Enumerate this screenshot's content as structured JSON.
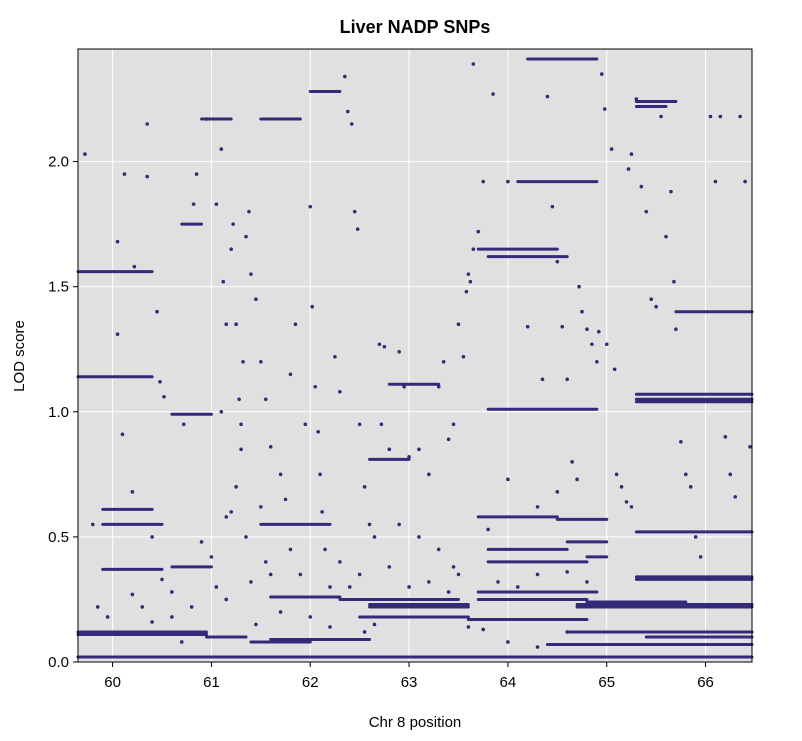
{
  "chart_data": {
    "type": "scatter",
    "title": "Liver NADP SNPs",
    "xlabel": "Chr 8 position",
    "ylabel": "LOD score",
    "xlim": [
      59.65,
      66.47
    ],
    "ylim": [
      0.0,
      2.45
    ],
    "x_ticks": [
      60,
      61,
      62,
      63,
      64,
      65,
      66
    ],
    "x_tick_labels": [
      "60",
      "61",
      "62",
      "63",
      "64",
      "65",
      "66"
    ],
    "y_ticks": [
      0.0,
      0.5,
      1.0,
      1.5,
      2.0
    ],
    "y_tick_labels": [
      "0.0",
      "0.5",
      "1.0",
      "1.5",
      "2.0"
    ],
    "grid": true,
    "background_color": "#e0e0e0",
    "grid_color": "#ffffff",
    "point_color": "#332a7a",
    "segments": [
      {
        "x0": 59.65,
        "x1": 60.95,
        "y": 0.12
      },
      {
        "x0": 59.65,
        "x1": 60.95,
        "y": 0.11
      },
      {
        "x0": 60.95,
        "x1": 61.35,
        "y": 0.1
      },
      {
        "x0": 61.4,
        "x1": 62.0,
        "y": 0.08
      },
      {
        "x0": 61.6,
        "x1": 62.6,
        "y": 0.09
      },
      {
        "x0": 61.6,
        "x1": 62.3,
        "y": 0.26
      },
      {
        "x0": 62.3,
        "x1": 63.5,
        "y": 0.25
      },
      {
        "x0": 62.6,
        "x1": 63.6,
        "y": 0.23
      },
      {
        "x0": 62.6,
        "x1": 63.6,
        "y": 0.22
      },
      {
        "x0": 62.5,
        "x1": 63.6,
        "y": 0.18
      },
      {
        "x0": 63.6,
        "x1": 64.8,
        "y": 0.17
      },
      {
        "x0": 64.7,
        "x1": 66.47,
        "y": 0.22
      },
      {
        "x0": 64.7,
        "x1": 66.47,
        "y": 0.23
      },
      {
        "x0": 64.4,
        "x1": 66.47,
        "y": 0.07
      },
      {
        "x0": 62.0,
        "x1": 66.47,
        "y": 0.02
      },
      {
        "x0": 59.65,
        "x1": 62.5,
        "y": 0.02
      },
      {
        "x0": 63.8,
        "x1": 64.6,
        "y": 0.45
      },
      {
        "x0": 64.6,
        "x1": 65.0,
        "y": 0.48
      },
      {
        "x0": 63.8,
        "x1": 64.8,
        "y": 0.4
      },
      {
        "x0": 64.8,
        "x1": 65.0,
        "y": 0.42
      },
      {
        "x0": 63.7,
        "x1": 64.5,
        "y": 0.58
      },
      {
        "x0": 64.5,
        "x1": 65.0,
        "y": 0.57
      },
      {
        "x0": 63.7,
        "x1": 64.8,
        "y": 0.25
      },
      {
        "x0": 64.8,
        "x1": 65.8,
        "y": 0.24
      },
      {
        "x0": 65.3,
        "x1": 66.47,
        "y": 0.34
      },
      {
        "x0": 65.3,
        "x1": 66.47,
        "y": 0.33
      },
      {
        "x0": 64.6,
        "x1": 66.47,
        "y": 0.12
      },
      {
        "x0": 65.4,
        "x1": 66.47,
        "y": 0.1
      },
      {
        "x0": 59.65,
        "x1": 60.4,
        "y": 1.56
      },
      {
        "x0": 59.65,
        "x1": 60.4,
        "y": 1.14
      },
      {
        "x0": 59.9,
        "x1": 60.4,
        "y": 0.61
      },
      {
        "x0": 59.9,
        "x1": 60.5,
        "y": 0.37
      },
      {
        "x0": 59.9,
        "x1": 60.5,
        "y": 0.55
      },
      {
        "x0": 60.6,
        "x1": 61.0,
        "y": 0.99
      },
      {
        "x0": 60.6,
        "x1": 61.0,
        "y": 0.38
      },
      {
        "x0": 60.7,
        "x1": 60.9,
        "y": 1.75
      },
      {
        "x0": 60.9,
        "x1": 61.2,
        "y": 2.17
      },
      {
        "x0": 61.5,
        "x1": 61.9,
        "y": 2.17
      },
      {
        "x0": 62.0,
        "x1": 62.3,
        "y": 2.28
      },
      {
        "x0": 63.8,
        "x1": 64.6,
        "y": 1.62
      },
      {
        "x0": 63.7,
        "x1": 64.5,
        "y": 1.65
      },
      {
        "x0": 64.1,
        "x1": 64.9,
        "y": 1.92
      },
      {
        "x0": 64.2,
        "x1": 64.9,
        "y": 2.41
      },
      {
        "x0": 65.3,
        "x1": 65.7,
        "y": 2.24
      },
      {
        "x0": 65.3,
        "x1": 65.6,
        "y": 2.22
      },
      {
        "x0": 65.3,
        "x1": 66.47,
        "y": 1.07
      },
      {
        "x0": 65.3,
        "x1": 66.47,
        "y": 1.05
      },
      {
        "x0": 65.3,
        "x1": 66.47,
        "y": 1.04
      },
      {
        "x0": 65.7,
        "x1": 66.47,
        "y": 1.4
      },
      {
        "x0": 65.3,
        "x1": 66.47,
        "y": 0.52
      },
      {
        "x0": 63.8,
        "x1": 64.9,
        "y": 1.01
      },
      {
        "x0": 62.6,
        "x1": 63.0,
        "y": 0.81
      },
      {
        "x0": 62.8,
        "x1": 63.3,
        "y": 1.11
      },
      {
        "x0": 63.7,
        "x1": 64.9,
        "y": 0.28
      },
      {
        "x0": 61.5,
        "x1": 62.2,
        "y": 0.55
      }
    ],
    "scatter": [
      [
        59.72,
        2.03
      ],
      [
        60.05,
        1.68
      ],
      [
        60.12,
        1.95
      ],
      [
        60.35,
        2.15
      ],
      [
        60.35,
        1.94
      ],
      [
        60.22,
        1.58
      ],
      [
        60.45,
        1.4
      ],
      [
        60.48,
        1.12
      ],
      [
        60.52,
        1.06
      ],
      [
        60.05,
        1.31
      ],
      [
        60.1,
        0.91
      ],
      [
        60.2,
        0.68
      ],
      [
        60.4,
        0.5
      ],
      [
        60.5,
        0.33
      ],
      [
        60.6,
        0.28
      ],
      [
        60.72,
        0.95
      ],
      [
        60.82,
        1.83
      ],
      [
        60.85,
        1.95
      ],
      [
        60.95,
        2.17
      ],
      [
        61.05,
        1.83
      ],
      [
        61.1,
        2.05
      ],
      [
        61.12,
        1.52
      ],
      [
        61.15,
        1.35
      ],
      [
        61.2,
        1.65
      ],
      [
        61.22,
        1.75
      ],
      [
        61.25,
        1.35
      ],
      [
        61.28,
        1.05
      ],
      [
        61.3,
        0.95
      ],
      [
        61.32,
        1.2
      ],
      [
        61.35,
        1.7
      ],
      [
        61.38,
        1.8
      ],
      [
        61.4,
        1.55
      ],
      [
        61.45,
        1.45
      ],
      [
        61.5,
        1.2
      ],
      [
        61.55,
        1.05
      ],
      [
        61.6,
        0.86
      ],
      [
        61.7,
        0.75
      ],
      [
        61.75,
        0.65
      ],
      [
        61.8,
        1.15
      ],
      [
        61.85,
        1.35
      ],
      [
        61.95,
        0.95
      ],
      [
        62.0,
        1.82
      ],
      [
        62.02,
        1.42
      ],
      [
        62.05,
        1.1
      ],
      [
        62.08,
        0.92
      ],
      [
        62.1,
        0.75
      ],
      [
        62.12,
        0.6
      ],
      [
        62.15,
        0.45
      ],
      [
        62.2,
        0.3
      ],
      [
        62.25,
        1.22
      ],
      [
        62.3,
        1.08
      ],
      [
        62.35,
        2.34
      ],
      [
        62.38,
        2.2
      ],
      [
        62.42,
        2.15
      ],
      [
        62.45,
        1.8
      ],
      [
        62.48,
        1.73
      ],
      [
        62.5,
        0.95
      ],
      [
        62.55,
        0.7
      ],
      [
        62.6,
        0.55
      ],
      [
        62.65,
        0.5
      ],
      [
        62.7,
        1.27
      ],
      [
        62.72,
        0.95
      ],
      [
        62.75,
        1.26
      ],
      [
        62.8,
        0.85
      ],
      [
        62.9,
        1.24
      ],
      [
        62.95,
        1.1
      ],
      [
        63.0,
        0.82
      ],
      [
        63.1,
        0.85
      ],
      [
        63.2,
        0.75
      ],
      [
        63.3,
        1.1
      ],
      [
        63.35,
        1.2
      ],
      [
        63.4,
        0.89
      ],
      [
        63.45,
        0.95
      ],
      [
        63.5,
        1.35
      ],
      [
        63.55,
        1.22
      ],
      [
        63.58,
        1.48
      ],
      [
        63.6,
        1.55
      ],
      [
        63.62,
        1.52
      ],
      [
        63.65,
        1.65
      ],
      [
        63.65,
        2.39
      ],
      [
        63.7,
        1.72
      ],
      [
        63.75,
        1.92
      ],
      [
        63.85,
        2.27
      ],
      [
        64.0,
        1.92
      ],
      [
        64.2,
        1.34
      ],
      [
        64.35,
        1.13
      ],
      [
        64.4,
        2.26
      ],
      [
        64.45,
        1.82
      ],
      [
        64.5,
        1.6
      ],
      [
        64.55,
        1.34
      ],
      [
        64.6,
        1.13
      ],
      [
        64.65,
        0.8
      ],
      [
        64.7,
        0.73
      ],
      [
        64.72,
        1.5
      ],
      [
        64.75,
        1.4
      ],
      [
        64.8,
        1.33
      ],
      [
        64.85,
        1.27
      ],
      [
        64.9,
        1.2
      ],
      [
        64.92,
        1.32
      ],
      [
        64.95,
        2.35
      ],
      [
        64.98,
        2.21
      ],
      [
        65.0,
        1.27
      ],
      [
        65.05,
        2.05
      ],
      [
        65.08,
        1.17
      ],
      [
        65.1,
        0.75
      ],
      [
        65.15,
        0.7
      ],
      [
        65.2,
        0.64
      ],
      [
        65.25,
        0.62
      ],
      [
        65.22,
        1.97
      ],
      [
        65.25,
        2.03
      ],
      [
        65.3,
        2.25
      ],
      [
        65.35,
        1.9
      ],
      [
        65.4,
        1.8
      ],
      [
        65.45,
        1.45
      ],
      [
        65.5,
        1.42
      ],
      [
        65.55,
        2.18
      ],
      [
        65.6,
        1.7
      ],
      [
        65.65,
        1.88
      ],
      [
        65.68,
        1.52
      ],
      [
        65.7,
        1.33
      ],
      [
        65.75,
        0.88
      ],
      [
        65.8,
        0.75
      ],
      [
        65.85,
        0.7
      ],
      [
        65.9,
        0.5
      ],
      [
        65.95,
        0.42
      ],
      [
        66.05,
        2.18
      ],
      [
        66.1,
        1.92
      ],
      [
        66.15,
        2.18
      ],
      [
        66.2,
        0.9
      ],
      [
        66.25,
        0.75
      ],
      [
        66.3,
        0.66
      ],
      [
        66.35,
        2.18
      ],
      [
        66.4,
        1.92
      ],
      [
        66.45,
        0.86
      ],
      [
        63.8,
        0.53
      ],
      [
        64.0,
        0.73
      ],
      [
        64.3,
        0.62
      ],
      [
        64.5,
        0.68
      ],
      [
        63.9,
        0.32
      ],
      [
        64.1,
        0.3
      ],
      [
        64.3,
        0.35
      ],
      [
        64.6,
        0.36
      ],
      [
        64.8,
        0.32
      ],
      [
        63.75,
        0.13
      ],
      [
        64.0,
        0.08
      ],
      [
        64.3,
        0.06
      ],
      [
        64.6,
        0.12
      ],
      [
        59.8,
        0.55
      ],
      [
        59.85,
        0.22
      ],
      [
        59.95,
        0.18
      ],
      [
        60.2,
        0.27
      ],
      [
        60.3,
        0.22
      ],
      [
        60.4,
        0.16
      ],
      [
        60.6,
        0.18
      ],
      [
        60.7,
        0.08
      ],
      [
        60.8,
        0.22
      ],
      [
        60.9,
        0.48
      ],
      [
        61.0,
        0.42
      ],
      [
        61.05,
        0.3
      ],
      [
        61.15,
        0.25
      ],
      [
        61.2,
        0.6
      ],
      [
        61.25,
        0.7
      ],
      [
        61.3,
        0.85
      ],
      [
        61.35,
        0.5
      ],
      [
        61.4,
        0.32
      ],
      [
        61.45,
        0.15
      ],
      [
        61.5,
        0.62
      ],
      [
        61.55,
        0.4
      ],
      [
        61.6,
        0.35
      ],
      [
        61.7,
        0.2
      ],
      [
        61.8,
        0.45
      ],
      [
        61.9,
        0.35
      ],
      [
        62.0,
        0.18
      ],
      [
        62.3,
        0.4
      ],
      [
        62.4,
        0.3
      ],
      [
        62.5,
        0.35
      ],
      [
        62.55,
        0.12
      ],
      [
        62.65,
        0.15
      ],
      [
        62.8,
        0.38
      ],
      [
        63.0,
        0.3
      ],
      [
        63.2,
        0.32
      ],
      [
        63.4,
        0.28
      ],
      [
        63.5,
        0.35
      ],
      [
        63.6,
        0.14
      ],
      [
        62.2,
        0.14
      ],
      [
        61.1,
        1.0
      ],
      [
        61.15,
        0.58
      ],
      [
        62.9,
        0.55
      ],
      [
        63.1,
        0.5
      ],
      [
        63.3,
        0.45
      ],
      [
        63.45,
        0.38
      ]
    ]
  }
}
